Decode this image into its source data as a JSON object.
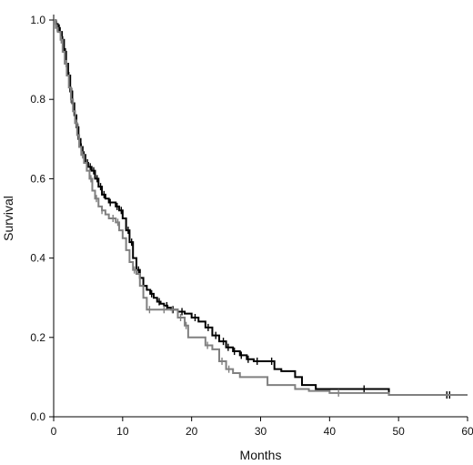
{
  "chart_data": {
    "type": "line",
    "title": "",
    "xlabel": "Months",
    "ylabel": "Survival",
    "xlim": [
      0,
      60
    ],
    "ylim": [
      0,
      1.0
    ],
    "x_ticks": [
      0,
      10,
      20,
      30,
      40,
      50,
      60
    ],
    "y_ticks": [
      0.0,
      0.2,
      0.4,
      0.6,
      0.8,
      1.0
    ],
    "x_tick_labels": [
      "0",
      "10",
      "20",
      "30",
      "40",
      "50",
      "60"
    ],
    "y_tick_labels": [
      "0.0",
      "0.2",
      "0.4",
      "0.6",
      "0.8",
      "1.0"
    ],
    "grid": false,
    "legend": "none",
    "step": true,
    "series": [
      {
        "color": "#000000",
        "points": [
          [
            0,
            1.0
          ],
          [
            0.3,
            0.99
          ],
          [
            0.6,
            0.98
          ],
          [
            0.9,
            0.97
          ],
          [
            1.2,
            0.95
          ],
          [
            1.5,
            0.92
          ],
          [
            1.8,
            0.89
          ],
          [
            2.1,
            0.86
          ],
          [
            2.4,
            0.82
          ],
          [
            2.7,
            0.79
          ],
          [
            3.0,
            0.76
          ],
          [
            3.3,
            0.73
          ],
          [
            3.6,
            0.7
          ],
          [
            3.9,
            0.68
          ],
          [
            4.2,
            0.66
          ],
          [
            4.6,
            0.64
          ],
          [
            5.0,
            0.63
          ],
          [
            5.5,
            0.62
          ],
          [
            6.0,
            0.6
          ],
          [
            6.5,
            0.58
          ],
          [
            7.0,
            0.56
          ],
          [
            7.5,
            0.55
          ],
          [
            8.0,
            0.54
          ],
          [
            8.5,
            0.54
          ],
          [
            9.0,
            0.53
          ],
          [
            9.5,
            0.52
          ],
          [
            10.0,
            0.5
          ],
          [
            10.5,
            0.47
          ],
          [
            11.0,
            0.44
          ],
          [
            11.5,
            0.4
          ],
          [
            12.0,
            0.37
          ],
          [
            12.5,
            0.35
          ],
          [
            13.0,
            0.33
          ],
          [
            13.5,
            0.32
          ],
          [
            14.0,
            0.31
          ],
          [
            14.5,
            0.3
          ],
          [
            15.0,
            0.29
          ],
          [
            15.5,
            0.285
          ],
          [
            16.0,
            0.28
          ],
          [
            16.5,
            0.275
          ],
          [
            17.0,
            0.27
          ],
          [
            18.0,
            0.265
          ],
          [
            19.0,
            0.26
          ],
          [
            20.0,
            0.25
          ],
          [
            21.0,
            0.24
          ],
          [
            22.0,
            0.225
          ],
          [
            23.0,
            0.205
          ],
          [
            24.0,
            0.19
          ],
          [
            25.0,
            0.175
          ],
          [
            26.0,
            0.165
          ],
          [
            27.0,
            0.155
          ],
          [
            28.0,
            0.145
          ],
          [
            29.0,
            0.14
          ],
          [
            31.0,
            0.14
          ],
          [
            32.0,
            0.12
          ],
          [
            33.0,
            0.115
          ],
          [
            35.0,
            0.1
          ],
          [
            36.0,
            0.08
          ],
          [
            38.0,
            0.07
          ],
          [
            40.0,
            0.07
          ],
          [
            45.0,
            0.07
          ],
          [
            48.5,
            0.07
          ],
          [
            48.6,
            0.055
          ],
          [
            60.0,
            0.055
          ]
        ],
        "censored_x": [
          0.4,
          0.8,
          1.3,
          1.7,
          2.2,
          2.6,
          3.1,
          3.5,
          4.0,
          4.4,
          4.9,
          5.3,
          5.8,
          6.3,
          6.8,
          7.3,
          8.2,
          9.2,
          9.8,
          10.8,
          11.3,
          12.3,
          14.2,
          15.3,
          16.4,
          17.3,
          18.6,
          20.5,
          22.4,
          23.5,
          24.6,
          25.3,
          26.2,
          27.2,
          28.2,
          29.5,
          31.6,
          45.0,
          57.0,
          57.4
        ]
      },
      {
        "color": "#808080",
        "points": [
          [
            0,
            1.0
          ],
          [
            0.3,
            0.98
          ],
          [
            0.6,
            0.97
          ],
          [
            1.0,
            0.95
          ],
          [
            1.3,
            0.92
          ],
          [
            1.6,
            0.89
          ],
          [
            1.9,
            0.86
          ],
          [
            2.2,
            0.83
          ],
          [
            2.5,
            0.8
          ],
          [
            2.8,
            0.77
          ],
          [
            3.1,
            0.74
          ],
          [
            3.4,
            0.71
          ],
          [
            3.7,
            0.68
          ],
          [
            4.0,
            0.66
          ],
          [
            4.4,
            0.64
          ],
          [
            4.8,
            0.62
          ],
          [
            5.2,
            0.6
          ],
          [
            5.6,
            0.57
          ],
          [
            6.0,
            0.55
          ],
          [
            6.5,
            0.53
          ],
          [
            7.0,
            0.52
          ],
          [
            7.5,
            0.51
          ],
          [
            8.0,
            0.5
          ],
          [
            8.5,
            0.5
          ],
          [
            9.0,
            0.49
          ],
          [
            9.5,
            0.47
          ],
          [
            10.0,
            0.45
          ],
          [
            10.5,
            0.42
          ],
          [
            11.0,
            0.39
          ],
          [
            11.5,
            0.37
          ],
          [
            12.0,
            0.36
          ],
          [
            12.5,
            0.33
          ],
          [
            13.0,
            0.3
          ],
          [
            13.5,
            0.27
          ],
          [
            14.0,
            0.27
          ],
          [
            15.0,
            0.27
          ],
          [
            17.0,
            0.27
          ],
          [
            18.0,
            0.25
          ],
          [
            19.0,
            0.23
          ],
          [
            19.5,
            0.2
          ],
          [
            21.0,
            0.2
          ],
          [
            22.0,
            0.18
          ],
          [
            23.0,
            0.17
          ],
          [
            24.0,
            0.14
          ],
          [
            25.0,
            0.12
          ],
          [
            26.0,
            0.11
          ],
          [
            27.0,
            0.1
          ],
          [
            30.0,
            0.1
          ],
          [
            31.0,
            0.08
          ],
          [
            33.0,
            0.08
          ],
          [
            35.0,
            0.07
          ],
          [
            37.0,
            0.065
          ],
          [
            40.0,
            0.06
          ],
          [
            45.0,
            0.06
          ],
          [
            48.5,
            0.06
          ],
          [
            48.6,
            0.055
          ],
          [
            60.0,
            0.055
          ]
        ],
        "censored_x": [
          0.5,
          1.1,
          1.8,
          2.5,
          3.3,
          4.2,
          5.4,
          6.2,
          7.0,
          8.6,
          9.3,
          11.7,
          13.9,
          16.0,
          17.2,
          18.4,
          19.2,
          22.3,
          24.4,
          25.4,
          41.3
        ]
      }
    ]
  }
}
